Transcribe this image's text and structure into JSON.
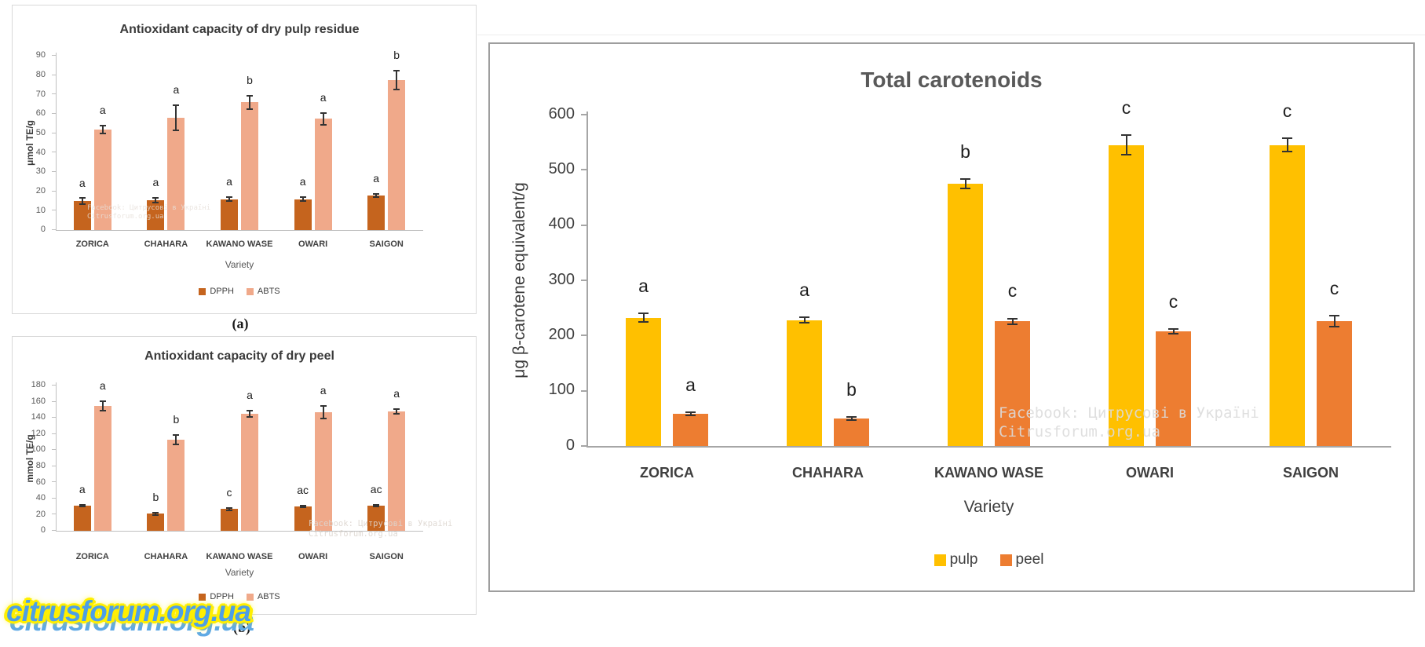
{
  "figure": {
    "captions": {
      "a": "(a)",
      "b": "(b)"
    }
  },
  "watermarks": {
    "facebook_line1": "Facebook: Цитрусові в Україні",
    "facebook_line2": "Citrusforum.org.ua",
    "big_text": "citrusforum.org.ua"
  },
  "chart_data": [
    {
      "id": "dry-pulp-residue",
      "type": "bar",
      "title": "Antioxidant capacity of dry pulp residue",
      "xlabel": "Variety",
      "ylabel": "μmol TE/g",
      "ylim": [
        0,
        90
      ],
      "ystep": 10,
      "grid": false,
      "legend_position": "bottom",
      "categories": [
        "ZORICA",
        "CHAHARA",
        "KAWANO WASE",
        "OWARI",
        "SAIGON"
      ],
      "series": [
        {
          "name": "DPPH",
          "color": "#C5641E",
          "values": [
            15,
            15.5,
            16,
            16,
            18
          ],
          "errors": [
            1.5,
            1.2,
            1,
            1,
            0.8
          ],
          "letters": [
            "a",
            "a",
            "a",
            "a",
            "a"
          ]
        },
        {
          "name": "ABTS",
          "color": "#F0A98A",
          "values": [
            52,
            58,
            66,
            57.5,
            77.5
          ],
          "errors": [
            2,
            6.5,
            3.5,
            3,
            5
          ],
          "letters": [
            "a",
            "a",
            "b",
            "a",
            "b"
          ]
        }
      ]
    },
    {
      "id": "dry-peel",
      "type": "bar",
      "title": "Antioxidant capacity of dry peel",
      "xlabel": "Variety",
      "ylabel": "mmol TE/g",
      "ylim": [
        0,
        180
      ],
      "ystep": 20,
      "grid": false,
      "legend_position": "bottom",
      "categories": [
        "ZORICA",
        "CHAHARA",
        "KAWANO WASE",
        "OWARI",
        "SAIGON"
      ],
      "series": [
        {
          "name": "DPPH",
          "color": "#C5641E",
          "values": [
            31,
            21,
            27,
            30,
            31
          ],
          "errors": [
            1,
            1.5,
            1.5,
            1,
            1
          ],
          "letters": [
            "a",
            "b",
            "c",
            "ac",
            "ac"
          ]
        },
        {
          "name": "ABTS",
          "color": "#F0A98A",
          "values": [
            155,
            113,
            145,
            147,
            148
          ],
          "errors": [
            6,
            6,
            4,
            8,
            3
          ],
          "letters": [
            "a",
            "b",
            "a",
            "a",
            "a"
          ]
        }
      ]
    },
    {
      "id": "total-carotenoids",
      "type": "bar",
      "title": "Total carotenoids",
      "xlabel": "Variety",
      "ylabel": "μg β-carotene equivalent/g",
      "ylim": [
        0,
        600
      ],
      "ystep": 100,
      "grid": false,
      "legend_position": "bottom",
      "categories": [
        "ZORICA",
        "CHAHARA",
        "KAWANO WASE",
        "OWARI",
        "SAIGON"
      ],
      "series": [
        {
          "name": "pulp",
          "color": "#FFC000",
          "values": [
            232,
            228,
            475,
            545,
            545
          ],
          "errors": [
            8,
            5,
            8,
            18,
            12
          ],
          "letters": [
            "a",
            "a",
            "b",
            "c",
            "c"
          ]
        },
        {
          "name": "peel",
          "color": "#ED7D31",
          "values": [
            58,
            50,
            226,
            208,
            226
          ],
          "errors": [
            3,
            3,
            5,
            4,
            10
          ],
          "letters": [
            "a",
            "b",
            "c",
            "c",
            "c"
          ]
        }
      ]
    }
  ]
}
